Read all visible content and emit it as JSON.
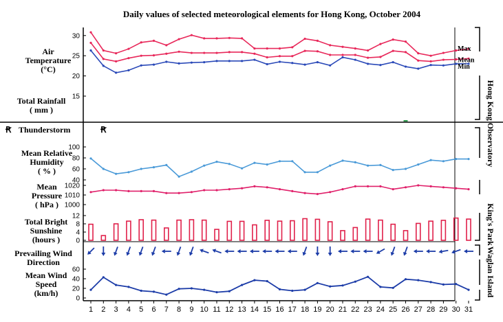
{
  "chart_data": {
    "type": "line",
    "title": "Daily values of selected meteorological elements for Hong Kong, October 2004",
    "days": [
      "1",
      "2",
      "3",
      "4",
      "5",
      "6",
      "7",
      "8",
      "9",
      "10",
      "11",
      "12",
      "13",
      "14",
      "15",
      "16",
      "17",
      "18",
      "19",
      "20",
      "21",
      "22",
      "23",
      "24",
      "25",
      "26",
      "27",
      "28",
      "29",
      "30",
      "31"
    ],
    "station_labels": {
      "observatory": "Hong Kong Observatory",
      "kings_park": "King's Park",
      "waglan": "Waglan Island"
    },
    "temperature": {
      "label_lines": [
        "Air",
        "Temperature",
        "(°C)"
      ],
      "ylim": [
        15,
        32
      ],
      "ticks": [
        "15",
        "20",
        "25",
        "30"
      ],
      "legend": {
        "max": "Max",
        "mean": "Mean",
        "min": "Min"
      },
      "colors": {
        "max": "#e8285a",
        "mean": "#e8285a",
        "min": "#2a49b8"
      },
      "max": [
        30.8,
        26.3,
        25.6,
        26.7,
        28.3,
        28.7,
        27.6,
        29.1,
        30.1,
        29.3,
        29.3,
        29.4,
        29.3,
        26.8,
        26.8,
        26.8,
        27.1,
        29.2,
        28.7,
        27.6,
        27.2,
        26.8,
        26.3,
        27.9,
        29.0,
        28.5,
        25.6,
        25.0,
        25.7,
        26.3,
        26.7
      ],
      "mean": [
        28.2,
        24.2,
        23.6,
        24.4,
        25.0,
        25.1,
        25.5,
        26.0,
        25.7,
        25.7,
        25.7,
        25.9,
        25.9,
        25.5,
        24.6,
        24.9,
        24.9,
        26.2,
        26.1,
        25.2,
        25.2,
        25.2,
        24.5,
        24.7,
        26.2,
        25.9,
        23.8,
        23.6,
        24.0,
        24.1,
        24.3
      ],
      "min": [
        26.3,
        22.5,
        20.8,
        21.4,
        22.6,
        22.8,
        23.5,
        23.1,
        23.3,
        23.4,
        23.7,
        23.7,
        23.7,
        24.0,
        22.9,
        23.5,
        23.2,
        22.8,
        23.4,
        22.6,
        24.6,
        24.0,
        23.0,
        22.7,
        23.4,
        22.3,
        21.8,
        22.7,
        22.6,
        23.0,
        23.0
      ]
    },
    "rainfall": {
      "label_lines": [
        "Total Rainfall",
        "( mm )"
      ],
      "values": [
        0,
        0,
        0,
        0,
        0,
        0,
        0,
        0,
        0,
        0,
        0,
        0,
        0,
        0,
        0,
        0,
        0,
        0,
        0,
        0,
        0,
        0,
        0,
        0,
        0,
        0.1,
        0,
        0,
        0,
        0,
        0
      ]
    },
    "thunderstorm": {
      "label": "Thunderstorm",
      "symbol": "Ꞧ",
      "days": [
        "2"
      ]
    },
    "humidity": {
      "label_lines": [
        "Mean Relative",
        "Humidity",
        "( % )"
      ],
      "ylim": [
        40,
        100
      ],
      "ticks": [
        "40",
        "60",
        "80",
        "100"
      ],
      "color": "#4a9ad8",
      "values": [
        79,
        60,
        51,
        54,
        60,
        63,
        67,
        46,
        55,
        66,
        73,
        69,
        61,
        71,
        68,
        74,
        74,
        54,
        54,
        66,
        75,
        72,
        66,
        67,
        58,
        60,
        68,
        76,
        74,
        78,
        78
      ]
    },
    "pressure": {
      "label_lines": [
        "Mean",
        "Pressure",
        "( hPa )"
      ],
      "ylim": [
        1000,
        1020
      ],
      "ticks": [
        "1000",
        "1010",
        "1020"
      ],
      "color": "#e0206a",
      "values": [
        1013,
        1015,
        1015,
        1014,
        1014,
        1014,
        1012,
        1012,
        1013,
        1015,
        1015,
        1016,
        1017,
        1019,
        1018,
        1016,
        1014,
        1012,
        1011,
        1013,
        1016,
        1019,
        1019,
        1019,
        1016,
        1018,
        1020,
        1019,
        1018,
        1017,
        1016
      ]
    },
    "sunshine": {
      "label_lines": [
        "Total Bright",
        "Sunshine",
        "(hours )"
      ],
      "ylim": [
        0,
        12
      ],
      "ticks": [
        "0",
        "4",
        "8",
        "12"
      ],
      "color": "#e0204a",
      "values": [
        7.8,
        2.3,
        8.0,
        9.3,
        10.0,
        9.8,
        6.0,
        9.8,
        10.0,
        9.8,
        5.3,
        9.2,
        9.2,
        7.5,
        9.7,
        9.3,
        9.5,
        10.5,
        10.2,
        9.0,
        4.7,
        6.2,
        10.3,
        9.8,
        7.8,
        4.7,
        8.2,
        9.3,
        9.7,
        10.8,
        10.3
      ]
    },
    "wind_direction": {
      "label_lines": [
        "Prevailing Wind",
        "Direction"
      ],
      "color": "#1c3ca8",
      "to_bearing": [
        225,
        180,
        200,
        200,
        200,
        200,
        270,
        200,
        200,
        290,
        290,
        270,
        270,
        270,
        270,
        270,
        270,
        200,
        180,
        180,
        270,
        270,
        270,
        240,
        200,
        200,
        270,
        270,
        260,
        250,
        270
      ]
    },
    "wind_speed": {
      "label_lines": [
        "Mean Wind",
        "Speed",
        "(km/h)"
      ],
      "ylim": [
        0,
        60
      ],
      "ticks": [
        "0",
        "20",
        "40",
        "60"
      ],
      "color": "#1c3ca8",
      "values": [
        17,
        43,
        27,
        23,
        15,
        13,
        7,
        19,
        20,
        17,
        12,
        14,
        27,
        37,
        35,
        18,
        15,
        17,
        31,
        24,
        26,
        34,
        44,
        23,
        21,
        39,
        37,
        33,
        28,
        29,
        17
      ]
    }
  }
}
